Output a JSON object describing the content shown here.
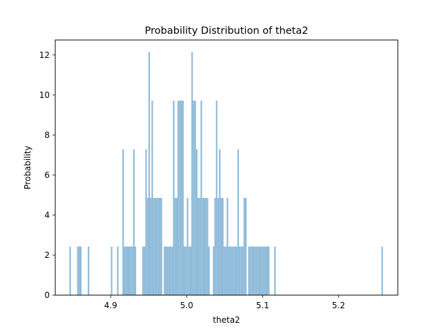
{
  "chart_data": {
    "type": "bar",
    "title": "Probability Distribution of theta2",
    "xlabel": "theta2",
    "ylabel": "Probability",
    "xlim": [
      4.827,
      5.278
    ],
    "ylim": [
      0,
      12.75
    ],
    "xticks": [
      4.9,
      5.0,
      5.1,
      5.2
    ],
    "xtick_labels": [
      "4.9",
      "5.0",
      "5.1",
      "5.2"
    ],
    "yticks": [
      0,
      2,
      4,
      6,
      8,
      10,
      12
    ],
    "ytick_labels": [
      "0",
      "2",
      "4",
      "6",
      "8",
      "10",
      "12"
    ],
    "grid": false,
    "bar_color": "#8fbbd9",
    "bin_width": 0.002,
    "bins": [
      {
        "x": 4.8466,
        "y": 2.43
      },
      {
        "x": 4.8567,
        "y": 2.43
      },
      {
        "x": 4.8587,
        "y": 2.43
      },
      {
        "x": 4.8607,
        "y": 2.43
      },
      {
        "x": 4.8708,
        "y": 2.43
      },
      {
        "x": 4.9012,
        "y": 2.43
      },
      {
        "x": 4.9093,
        "y": 2.43
      },
      {
        "x": 4.9164,
        "y": 7.29
      },
      {
        "x": 4.9184,
        "y": 2.43
      },
      {
        "x": 4.9204,
        "y": 2.43
      },
      {
        "x": 4.9224,
        "y": 2.43
      },
      {
        "x": 4.9244,
        "y": 2.43
      },
      {
        "x": 4.9264,
        "y": 2.43
      },
      {
        "x": 4.9285,
        "y": 2.43
      },
      {
        "x": 4.9305,
        "y": 7.29
      },
      {
        "x": 4.9325,
        "y": 2.43
      },
      {
        "x": 4.9426,
        "y": 2.43
      },
      {
        "x": 4.9446,
        "y": 2.43
      },
      {
        "x": 4.9466,
        "y": 7.29
      },
      {
        "x": 4.9487,
        "y": 4.86
      },
      {
        "x": 4.9507,
        "y": 12.15
      },
      {
        "x": 4.9527,
        "y": 4.86
      },
      {
        "x": 4.9547,
        "y": 9.72
      },
      {
        "x": 4.9567,
        "y": 4.86
      },
      {
        "x": 4.9588,
        "y": 4.86
      },
      {
        "x": 4.9608,
        "y": 4.86
      },
      {
        "x": 4.9628,
        "y": 4.86
      },
      {
        "x": 4.9648,
        "y": 4.86
      },
      {
        "x": 4.9668,
        "y": 4.86
      },
      {
        "x": 4.9709,
        "y": 2.43
      },
      {
        "x": 4.9729,
        "y": 2.43
      },
      {
        "x": 4.9749,
        "y": 2.43
      },
      {
        "x": 4.9769,
        "y": 2.43
      },
      {
        "x": 4.9789,
        "y": 2.43
      },
      {
        "x": 4.981,
        "y": 2.43
      },
      {
        "x": 4.983,
        "y": 9.72
      },
      {
        "x": 4.985,
        "y": 4.86
      },
      {
        "x": 4.987,
        "y": 4.86
      },
      {
        "x": 4.989,
        "y": 9.72
      },
      {
        "x": 4.9911,
        "y": 9.72
      },
      {
        "x": 4.9931,
        "y": 9.72
      },
      {
        "x": 4.9951,
        "y": 9.72
      },
      {
        "x": 4.9971,
        "y": 2.43
      },
      {
        "x": 4.9991,
        "y": 2.43
      },
      {
        "x": 5.0012,
        "y": 4.86
      },
      {
        "x": 5.0032,
        "y": 2.43
      },
      {
        "x": 5.0052,
        "y": 2.43
      },
      {
        "x": 5.0072,
        "y": 12.15
      },
      {
        "x": 5.0092,
        "y": 9.72
      },
      {
        "x": 5.0113,
        "y": 9.72
      },
      {
        "x": 5.0133,
        "y": 7.29
      },
      {
        "x": 5.0153,
        "y": 4.86
      },
      {
        "x": 5.0173,
        "y": 4.86
      },
      {
        "x": 5.0193,
        "y": 9.72
      },
      {
        "x": 5.0214,
        "y": 4.86
      },
      {
        "x": 5.0234,
        "y": 4.86
      },
      {
        "x": 5.0254,
        "y": 4.86
      },
      {
        "x": 5.0274,
        "y": 4.86
      },
      {
        "x": 5.0294,
        "y": 2.43
      },
      {
        "x": 5.0355,
        "y": 2.43
      },
      {
        "x": 5.0375,
        "y": 4.86
      },
      {
        "x": 5.0395,
        "y": 9.72
      },
      {
        "x": 5.0416,
        "y": 4.86
      },
      {
        "x": 5.0436,
        "y": 7.29
      },
      {
        "x": 5.0456,
        "y": 4.86
      },
      {
        "x": 5.0476,
        "y": 4.86
      },
      {
        "x": 5.0496,
        "y": 2.43
      },
      {
        "x": 5.0517,
        "y": 2.43
      },
      {
        "x": 5.0537,
        "y": 4.86
      },
      {
        "x": 5.0557,
        "y": 2.43
      },
      {
        "x": 5.0577,
        "y": 2.43
      },
      {
        "x": 5.0597,
        "y": 2.43
      },
      {
        "x": 5.0618,
        "y": 2.43
      },
      {
        "x": 5.0638,
        "y": 2.43
      },
      {
        "x": 5.0658,
        "y": 2.43
      },
      {
        "x": 5.0678,
        "y": 7.29
      },
      {
        "x": 5.0698,
        "y": 2.43
      },
      {
        "x": 5.0719,
        "y": 2.43
      },
      {
        "x": 5.0739,
        "y": 2.43
      },
      {
        "x": 5.0759,
        "y": 4.86
      },
      {
        "x": 5.0779,
        "y": 4.86
      },
      {
        "x": 5.082,
        "y": 2.43
      },
      {
        "x": 5.084,
        "y": 2.43
      },
      {
        "x": 5.086,
        "y": 2.43
      },
      {
        "x": 5.088,
        "y": 2.43
      },
      {
        "x": 5.09,
        "y": 2.43
      },
      {
        "x": 5.0921,
        "y": 2.43
      },
      {
        "x": 5.0941,
        "y": 2.43
      },
      {
        "x": 5.0961,
        "y": 2.43
      },
      {
        "x": 5.0981,
        "y": 2.43
      },
      {
        "x": 5.1001,
        "y": 2.43
      },
      {
        "x": 5.1022,
        "y": 2.43
      },
      {
        "x": 5.1042,
        "y": 2.43
      },
      {
        "x": 5.1062,
        "y": 2.43
      },
      {
        "x": 5.1082,
        "y": 2.43
      },
      {
        "x": 5.1163,
        "y": 2.43
      },
      {
        "x": 5.2574,
        "y": 2.43
      }
    ]
  }
}
